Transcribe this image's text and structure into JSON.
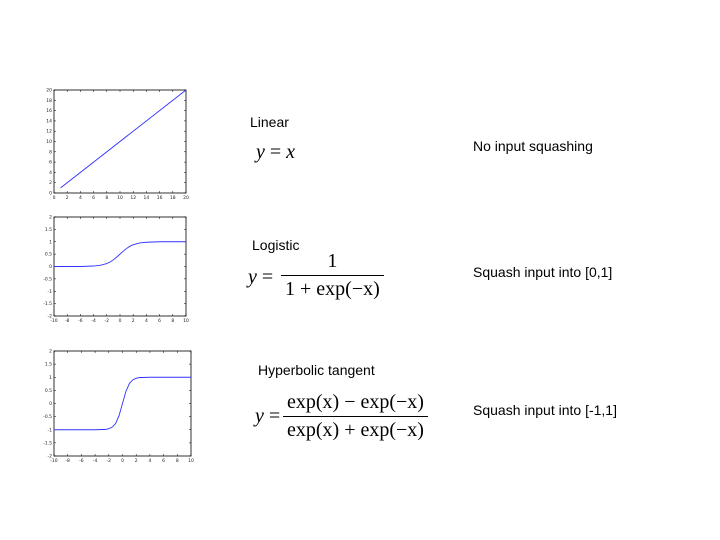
{
  "rows": [
    {
      "name": "Linear",
      "description": "No input squashing",
      "equation": {
        "lhs": "y",
        "eq": "=",
        "rhs": "x"
      }
    },
    {
      "name": "Logistic",
      "description": "Squash input into [0,1]",
      "equation": {
        "lhs": "y",
        "eq": "=",
        "numerator": "1",
        "denominator": "1 + exp(−x)"
      }
    },
    {
      "name": "Hyperbolic tangent",
      "description": "Squash input into [-1,1]",
      "equation": {
        "lhs": "y",
        "eq": "=",
        "numerator": "exp(x) − exp(−x)",
        "denominator": "exp(x) + exp(−x)"
      }
    }
  ],
  "chart_data": [
    {
      "type": "line",
      "title": "",
      "xlabel": "",
      "ylabel": "",
      "xlim": [
        0,
        20
      ],
      "ylim": [
        0,
        20
      ],
      "xticks": [
        "0",
        "2",
        "4",
        "6",
        "8",
        "10",
        "12",
        "14",
        "16",
        "18",
        "20"
      ],
      "yticks": [
        "0",
        "2",
        "4",
        "6",
        "8",
        "10",
        "12",
        "14",
        "16",
        "18",
        "20"
      ],
      "series": [
        {
          "color": "#3333ff",
          "x": [
            1,
            20
          ],
          "y": [
            1,
            20
          ]
        }
      ]
    },
    {
      "type": "line",
      "title": "",
      "xlabel": "",
      "ylabel": "",
      "xlim": [
        -10,
        10
      ],
      "ylim": [
        -2,
        2
      ],
      "xticks": [
        "-10",
        "-8",
        "-6",
        "-4",
        "-2",
        "0",
        "2",
        "4",
        "6",
        "8",
        "10"
      ],
      "yticks": [
        "-2",
        "-1.5",
        "-1",
        "-0.5",
        "0",
        "0.5",
        "1",
        "1.5",
        "2"
      ],
      "series": [
        {
          "color": "#3333ff",
          "x": [
            -10,
            -8,
            -6,
            -5,
            -4,
            -3,
            -2,
            -1.5,
            -1,
            -0.5,
            0,
            0.5,
            1,
            1.5,
            2,
            3,
            4,
            5,
            6,
            8,
            10
          ],
          "y": [
            0,
            0,
            0,
            0.01,
            0.02,
            0.05,
            0.12,
            0.18,
            0.27,
            0.38,
            0.5,
            0.62,
            0.73,
            0.82,
            0.88,
            0.95,
            0.98,
            0.99,
            1,
            1,
            1
          ]
        }
      ]
    },
    {
      "type": "line",
      "title": "",
      "xlabel": "",
      "ylabel": "",
      "xlim": [
        -10,
        10
      ],
      "ylim": [
        -2,
        2
      ],
      "xticks": [
        "-10",
        "-8",
        "-6",
        "-4",
        "-2",
        "0",
        "2",
        "4",
        "6",
        "8",
        "10"
      ],
      "yticks": [
        "-2",
        "-1.5",
        "-1",
        "-0.5",
        "0",
        "0.5",
        "1",
        "1.5",
        "2"
      ],
      "series": [
        {
          "color": "#3333ff",
          "x": [
            -10,
            -6,
            -4,
            -3,
            -2.5,
            -2,
            -1.5,
            -1,
            -0.5,
            0,
            0.5,
            1,
            1.5,
            2,
            2.5,
            3,
            4,
            6,
            10
          ],
          "y": [
            -1,
            -1,
            -1,
            -0.99,
            -0.99,
            -0.96,
            -0.9,
            -0.76,
            -0.46,
            0,
            0.46,
            0.76,
            0.9,
            0.96,
            0.99,
            0.99,
            1,
            1,
            1
          ]
        }
      ]
    }
  ]
}
